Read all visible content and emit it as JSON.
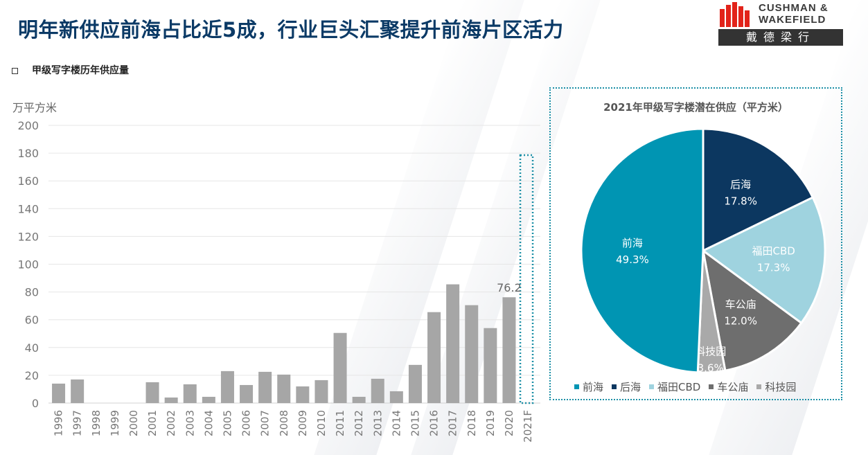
{
  "header": {
    "title": "明年新供应前海占比近5成，行业巨头汇聚提升前海片区活力"
  },
  "logo": {
    "line1": "CUSHMAN &",
    "line2": "WAKEFIELD",
    "chinese": "戴德梁行"
  },
  "section_label": "甲级写字楼历年供应量",
  "colors": {
    "bar": "#a6a6a6",
    "headline": "#0b3a66",
    "highlight_border": "#1b8fa6"
  },
  "chart_data": [
    {
      "type": "bar",
      "title": "",
      "ylabel": "万平方米",
      "xlabel": "",
      "ylim": [
        0,
        200
      ],
      "yticks": [
        0,
        20,
        40,
        60,
        80,
        100,
        120,
        140,
        160,
        180,
        200
      ],
      "categories": [
        "1996",
        "1997",
        "1998",
        "1999",
        "2000",
        "2001",
        "2002",
        "2003",
        "2004",
        "2005",
        "2006",
        "2007",
        "2008",
        "2009",
        "2010",
        "2011",
        "2012",
        "2013",
        "2014",
        "2015",
        "2016",
        "2017",
        "2018",
        "2019",
        "2020",
        "2021F"
      ],
      "values": [
        14,
        17,
        0,
        0,
        0,
        15,
        4,
        13.5,
        4.5,
        23,
        13,
        22.5,
        20.5,
        12,
        16.5,
        50.5,
        4.5,
        17.5,
        8.5,
        27.5,
        65.5,
        85.5,
        70.5,
        54,
        76.2,
        0
      ],
      "data_labels": [
        {
          "category": "2020",
          "text": "76.2"
        }
      ],
      "grid": true,
      "highlight_category": "2021F"
    },
    {
      "type": "pie",
      "title": "2021年甲级写字楼潜在供应（平方米）",
      "slices": [
        {
          "name": "后海",
          "value": 17.8,
          "label": "17.8%",
          "color": "#0c3760"
        },
        {
          "name": "福田CBD",
          "value": 17.3,
          "label": "17.3%",
          "color": "#9fd3df"
        },
        {
          "name": "车公庙",
          "value": 12.0,
          "label": "12.0%",
          "color": "#6e6e6e"
        },
        {
          "name": "科技园",
          "value": 3.6,
          "label": "3.6%",
          "color": "#a9a9a9"
        },
        {
          "name": "前海",
          "value": 49.3,
          "label": "49.3%",
          "color": "#0095b3"
        }
      ],
      "legend": [
        "前海",
        "后海",
        "福田CBD",
        "车公庙",
        "科技园"
      ],
      "legend_position": "bottom"
    }
  ]
}
